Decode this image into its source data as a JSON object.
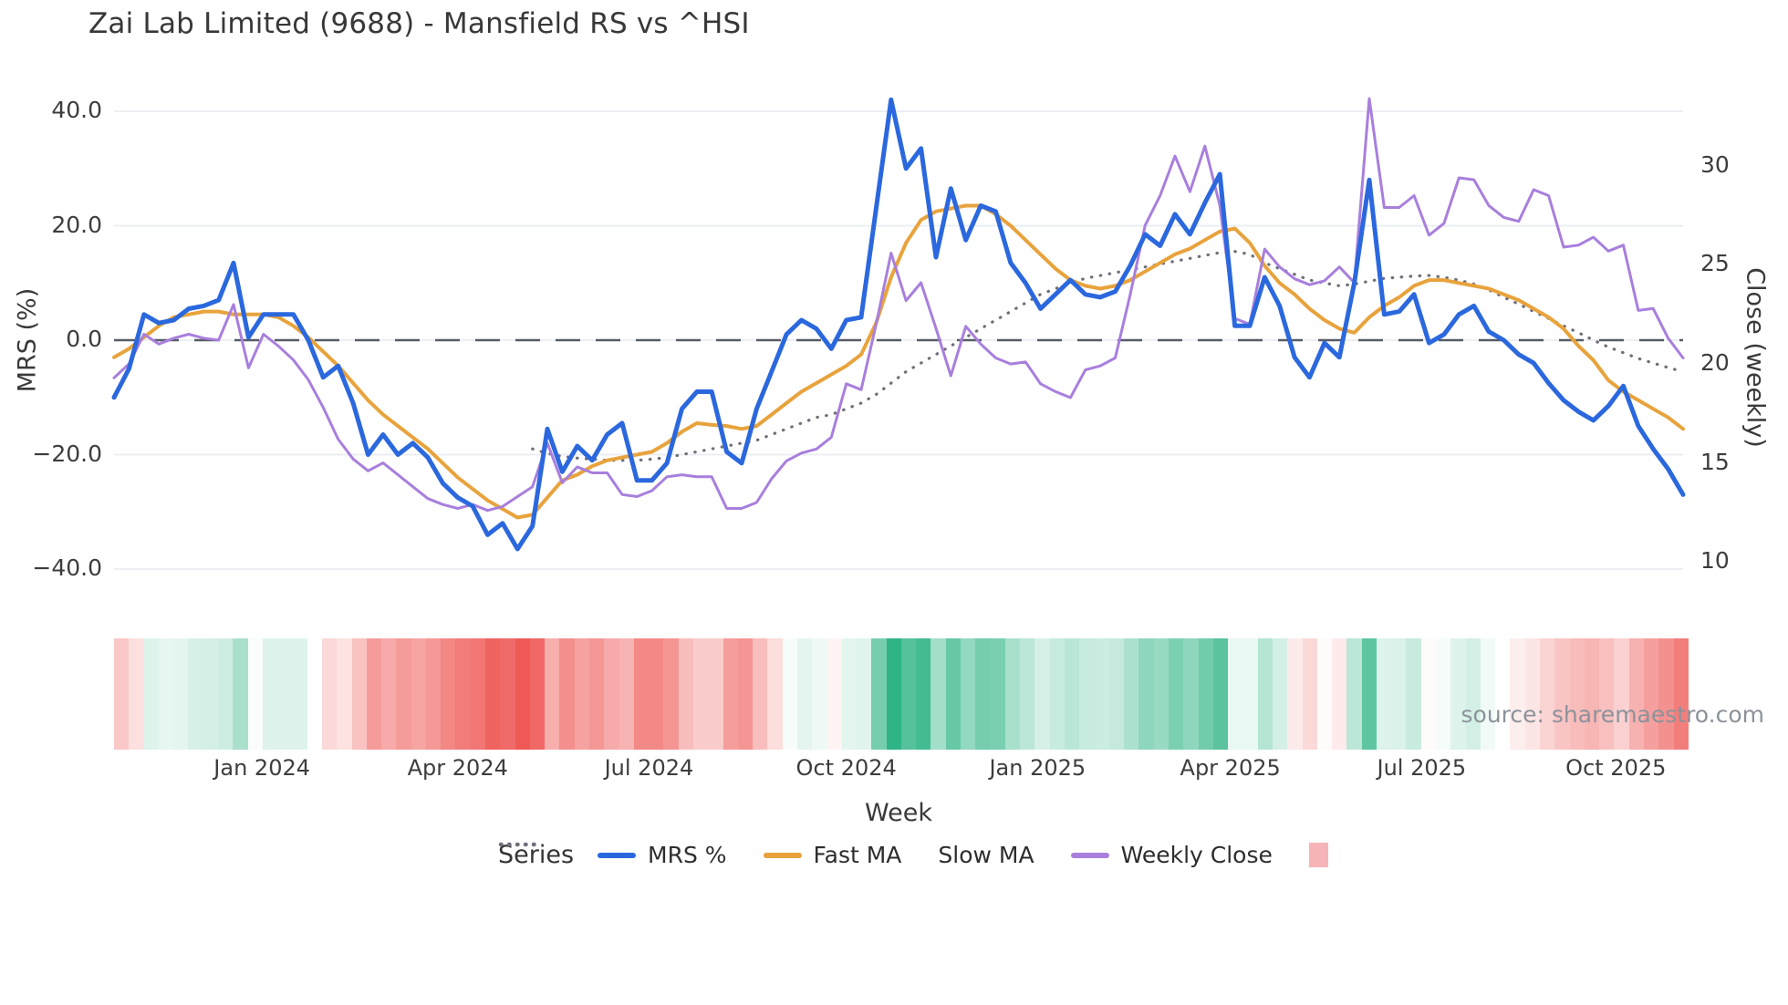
{
  "title": "Zai Lab Limited (9688) - Mansfield RS vs ^HSI",
  "source": "source: sharemaestro.com",
  "axes": {
    "left": {
      "title": "MRS (%)",
      "ticks": [
        "40.0",
        "20.0",
        "0.0",
        "−20.0",
        "−40.0"
      ],
      "tick_values": [
        40,
        20,
        0,
        -20,
        -40
      ]
    },
    "right": {
      "title": "Close (weekly)",
      "ticks": [
        "30",
        "25",
        "20",
        "15",
        "10"
      ],
      "tick_values": [
        30,
        25,
        20,
        15,
        10
      ]
    },
    "x": {
      "title": "Week",
      "ticks": [
        "Jan 2024",
        "Apr 2024",
        "Jul 2024",
        "Oct 2024",
        "Jan 2025",
        "Apr 2025",
        "Jul 2025",
        "Oct 2025"
      ],
      "tick_weeks": [
        9.9,
        23.0,
        35.8,
        49.0,
        61.8,
        74.7,
        87.5,
        100.5
      ]
    }
  },
  "legend": {
    "title": "Series",
    "items": [
      {
        "label": "MRS %",
        "color": "#2b68de",
        "style": "line"
      },
      {
        "label": "Fast MA",
        "color": "#e8a33c",
        "style": "line"
      },
      {
        "label": "Slow MA",
        "color": "#6f6f7a",
        "style": "dotted"
      },
      {
        "label": "Weekly Close",
        "color": "#a87fdd",
        "style": "line"
      },
      {
        "label": "",
        "color": "#f7b4b8",
        "style": "square"
      }
    ]
  },
  "chart_data": {
    "type": "line",
    "x_unit": "week",
    "n_weeks": 106,
    "x_tick_labels": [
      "Jan 2024",
      "Apr 2024",
      "Jul 2024",
      "Oct 2024",
      "Jan 2025",
      "Apr 2025",
      "Jul 2025",
      "Oct 2025"
    ],
    "left_axis": {
      "label": "MRS (%)",
      "range": [
        -44,
        46
      ],
      "zero_line": "dashed"
    },
    "right_axis": {
      "label": "Close (weekly)",
      "ticks": [
        30,
        25,
        20,
        15,
        10
      ]
    },
    "grid": true,
    "legend_position": "bottom",
    "series": [
      {
        "name": "MRS %",
        "axis": "left",
        "color": "#2b68de",
        "style": "solid",
        "width": 5,
        "values": [
          -10,
          -5,
          4.5,
          3,
          3.5,
          5.5,
          6,
          7,
          13.5,
          0.5,
          4.5,
          4.5,
          4.5,
          0,
          -6.5,
          -4.5,
          -11,
          -20,
          -16.5,
          -20,
          -18,
          -20.5,
          -25,
          -27.5,
          -29,
          -34,
          -32,
          -36.5,
          -32.5,
          -15.5,
          -23,
          -18.5,
          -21,
          -16.5,
          -14.5,
          -24.5,
          -24.5,
          -21.5,
          -12,
          -9,
          -9,
          -19.5,
          -21.5,
          -12,
          -5.5,
          1,
          3.5,
          2,
          -1.5,
          3.5,
          4,
          23,
          42,
          30,
          33.5,
          14.5,
          26.5,
          17.5,
          23.5,
          22.5,
          13.5,
          10,
          5.5,
          8,
          10.5,
          8,
          7.5,
          8.5,
          13,
          18.5,
          16.5,
          22,
          18.5,
          24,
          29,
          2.5,
          2.5,
          11,
          6,
          -3,
          -6.5,
          -0.5,
          -3,
          10,
          28,
          4.5,
          5,
          8,
          -0.5,
          1,
          4.5,
          6,
          1.5,
          0,
          -2.5,
          -4,
          -7.5,
          -10.5,
          -12.5,
          -14,
          -11.5,
          -8,
          -15,
          -19,
          -22.5,
          -27
        ]
      },
      {
        "name": "Fast MA",
        "axis": "left",
        "color": "#e8a33c",
        "style": "solid",
        "width": 4,
        "values": [
          -3,
          -1.5,
          0.5,
          2.5,
          4,
          4.5,
          5,
          5,
          4.5,
          4.5,
          4.5,
          4,
          2.5,
          0.5,
          -2,
          -4.5,
          -7.5,
          -10.5,
          -13,
          -15,
          -17,
          -19,
          -21.5,
          -24,
          -26,
          -28,
          -29.5,
          -31,
          -30.5,
          -27.5,
          -24.5,
          -23.5,
          -22,
          -21,
          -20.5,
          -20,
          -19.5,
          -18,
          -16,
          -14.5,
          -14.8,
          -15,
          -15.5,
          -15,
          -13,
          -11,
          -9,
          -7.5,
          -6,
          -4.5,
          -2.5,
          3,
          11,
          17,
          21,
          22.5,
          23,
          23.5,
          23.5,
          22,
          20,
          17.5,
          15,
          12.5,
          10.5,
          9.5,
          9,
          9.5,
          10.5,
          12,
          13.5,
          15,
          16,
          17.5,
          19,
          19.5,
          17,
          13,
          10,
          8,
          5.5,
          3.5,
          2,
          1.3,
          4,
          6,
          7.5,
          9.5,
          10.5,
          10.5,
          10,
          9.5,
          9,
          8,
          7,
          5.5,
          4,
          2,
          -1,
          -3.5,
          -7,
          -9,
          -10.5,
          -12,
          -13.5,
          -15.5
        ]
      },
      {
        "name": "Slow MA",
        "axis": "left",
        "color": "#6f6f7a",
        "style": "dotted",
        "width": 3.2,
        "values": [
          null,
          null,
          null,
          null,
          null,
          null,
          null,
          null,
          null,
          null,
          null,
          null,
          null,
          null,
          null,
          null,
          null,
          null,
          null,
          null,
          null,
          null,
          null,
          null,
          null,
          null,
          null,
          null,
          -19,
          -19.8,
          -20.3,
          -20.6,
          -20.8,
          -21,
          -21,
          -21,
          -20.8,
          -20.5,
          -20,
          -19.5,
          -19,
          -18.5,
          -18,
          -17.5,
          -16.5,
          -15.5,
          -14.5,
          -13.5,
          -13,
          -12,
          -11,
          -9.5,
          -7.5,
          -5.5,
          -4,
          -2.5,
          -1,
          0.5,
          2,
          3.5,
          5,
          6.5,
          8,
          9,
          10,
          10.8,
          11.3,
          11.8,
          12.3,
          12.8,
          13.3,
          13.8,
          14.3,
          14.8,
          15.3,
          15.5,
          15,
          13.5,
          12.5,
          11.5,
          10.5,
          10,
          9.5,
          9.8,
          10.3,
          10.8,
          11,
          11.2,
          11.3,
          11,
          10.5,
          9.8,
          8.8,
          7.5,
          6.3,
          5,
          3.8,
          2.5,
          1.3,
          0,
          -1.2,
          -2.2,
          -3.2,
          -4,
          -4.8,
          -5.5
        ]
      },
      {
        "name": "Weekly Close",
        "axis": "right",
        "color": "#a87fdd",
        "style": "solid",
        "width": 3,
        "values": [
          19.3,
          20.0,
          21.5,
          21.0,
          21.3,
          21.5,
          21.3,
          21.2,
          23.0,
          19.8,
          21.5,
          20.9,
          20.2,
          19.2,
          17.8,
          16.2,
          15.2,
          14.6,
          15.0,
          14.4,
          13.8,
          13.2,
          12.9,
          12.7,
          12.9,
          12.6,
          12.8,
          13.3,
          13.8,
          16.0,
          14.0,
          14.8,
          14.5,
          14.5,
          13.4,
          13.3,
          13.6,
          14.3,
          14.4,
          14.3,
          14.3,
          12.7,
          12.7,
          13.0,
          14.2,
          15.1,
          15.5,
          15.7,
          16.3,
          19.0,
          18.7,
          22.0,
          25.6,
          23.2,
          24.1,
          21.8,
          19.4,
          21.9,
          21.0,
          20.3,
          20.0,
          20.1,
          19.0,
          18.6,
          18.3,
          19.7,
          19.9,
          20.3,
          23.5,
          27.0,
          28.5,
          30.5,
          28.7,
          31.0,
          28.0,
          22.3,
          22.0,
          25.8,
          24.9,
          24.3,
          24.0,
          24.2,
          24.9,
          24.1,
          33.4,
          27.9,
          27.9,
          28.5,
          26.5,
          27.1,
          29.4,
          29.3,
          28.0,
          27.4,
          27.2,
          28.8,
          28.5,
          25.9,
          26.0,
          26.4,
          25.7,
          26.0,
          22.7,
          22.8,
          21.3,
          20.3
        ]
      }
    ],
    "heatmap_strip": {
      "derived_from": "MRS %",
      "positive_color": "#2fb485",
      "negative_color": "#ed534f",
      "description": "one cell per week; green intensity for positive MRS, red intensity for negative MRS"
    },
    "zero_line_color": "#565b66",
    "grid_color": "#e9edf2"
  }
}
